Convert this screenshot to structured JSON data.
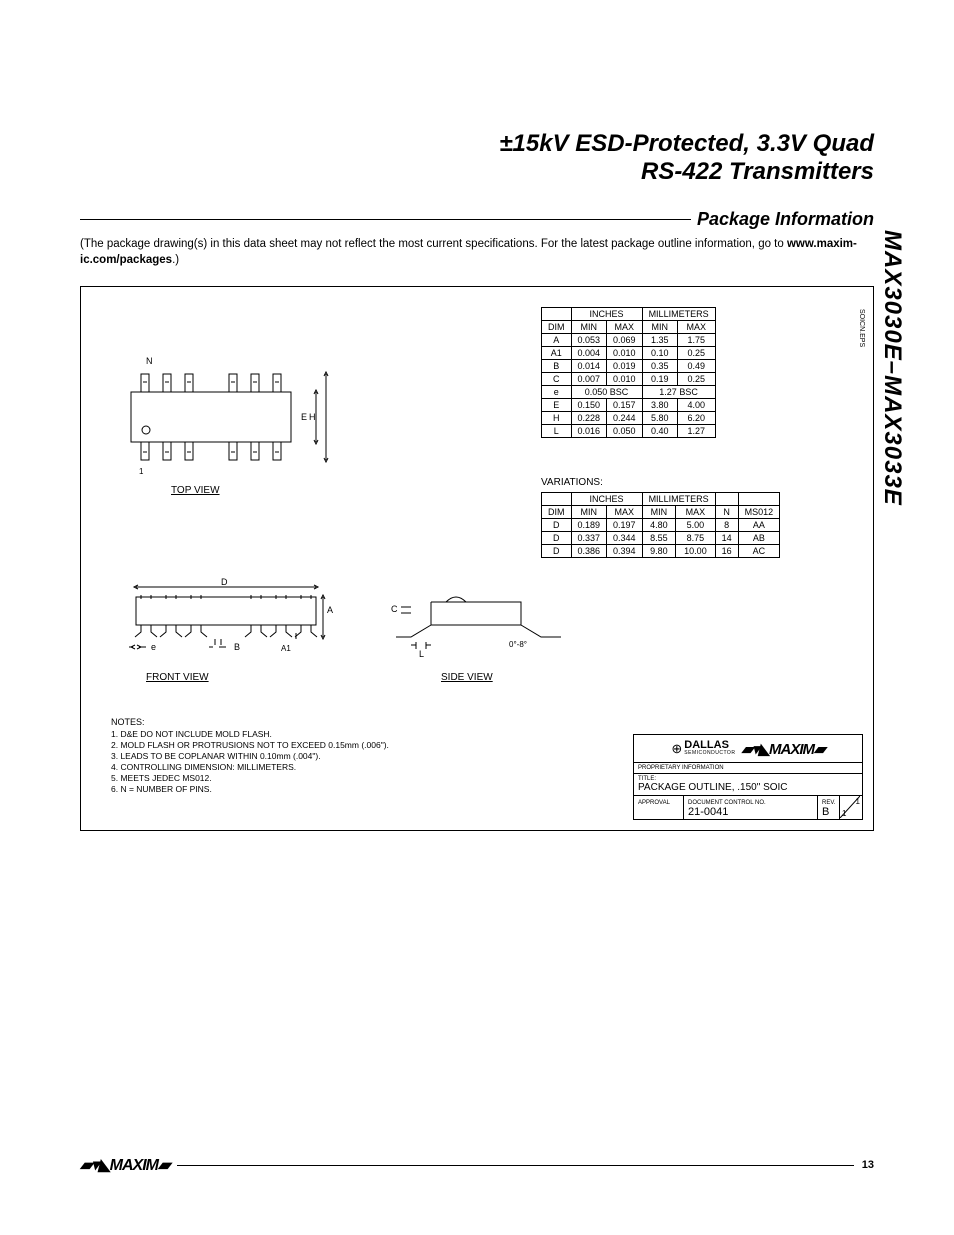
{
  "title_l1": "±15kV ESD-Protected, 3.3V Quad",
  "title_l2": "RS-422 Transmitters",
  "section": "Package Information",
  "disclaimer_a": "(The package drawing(s) in this data sheet may not reflect the most current specifications. For the latest package outline information, go to ",
  "disclaimer_b": "www.maxim-ic.com/packages",
  "disclaimer_c": ".)",
  "side_label": "MAX3030E–MAX3033E",
  "eps_label": "SOICN.EPS",
  "table1": {
    "head_in": "INCHES",
    "head_mm": "MILLIMETERS",
    "cols": [
      "DIM",
      "MIN",
      "MAX",
      "MIN",
      "MAX"
    ],
    "rows": [
      [
        "A",
        "0.053",
        "0.069",
        "1.35",
        "1.75"
      ],
      [
        "A1",
        "0.004",
        "0.010",
        "0.10",
        "0.25"
      ],
      [
        "B",
        "0.014",
        "0.019",
        "0.35",
        "0.49"
      ],
      [
        "C",
        "0.007",
        "0.010",
        "0.19",
        "0.25"
      ],
      [
        "e",
        "0.050 BSC",
        "",
        "1.27 BSC",
        ""
      ],
      [
        "E",
        "0.150",
        "0.157",
        "3.80",
        "4.00"
      ],
      [
        "H",
        "0.228",
        "0.244",
        "5.80",
        "6.20"
      ],
      [
        "L",
        "0.016",
        "0.050",
        "0.40",
        "1.27"
      ]
    ]
  },
  "variations_label": "VARIATIONS:",
  "table2": {
    "head_in": "INCHES",
    "head_mm": "MILLIMETERS",
    "cols": [
      "DIM",
      "MIN",
      "MAX",
      "MIN",
      "MAX",
      "N",
      "MS012"
    ],
    "rows": [
      [
        "D",
        "0.189",
        "0.197",
        "4.80",
        "5.00",
        "8",
        "AA"
      ],
      [
        "D",
        "0.337",
        "0.344",
        "8.55",
        "8.75",
        "14",
        "AB"
      ],
      [
        "D",
        "0.386",
        "0.394",
        "9.80",
        "10.00",
        "16",
        "AC"
      ]
    ]
  },
  "views": {
    "top": "TOP VIEW",
    "front": "FRONT VIEW",
    "side": "SIDE VIEW"
  },
  "pkg_labels": {
    "N": "N",
    "E": "E",
    "H": "H",
    "D": "D",
    "A": "A",
    "A1": "A1",
    "e": "e",
    "B": "B",
    "C": "C",
    "L": "L",
    "angle": "0°-8°",
    "one": "1"
  },
  "notes": {
    "head": "NOTES:",
    "n1": "1. D&E DO NOT INCLUDE MOLD FLASH.",
    "n2": "2. MOLD FLASH OR PROTRUSIONS NOT TO EXCEED 0.15mm (.006\").",
    "n3": "3. LEADS TO BE COPLANAR WITHIN 0.10mm (.004\").",
    "n4": "4. CONTROLLING DIMENSION: MILLIMETERS.",
    "n5": "5. MEETS JEDEC MS012.",
    "n6": "6. N = NUMBER OF PINS."
  },
  "titleblock": {
    "dallas": "DALLAS",
    "semi": "SEMICONDUCTOR",
    "maxim": "MAXIM",
    "prop": "PROPRIETARY INFORMATION",
    "title_lbl": "TITLE:",
    "title": "PACKAGE OUTLINE, .150\" SOIC",
    "approval": "APPROVAL",
    "docno_lbl": "DOCUMENT CONTROL NO.",
    "docno": "21-0041",
    "rev_lbl": "REV.",
    "rev": "B",
    "sheet": "1",
    "sheet_of": "1"
  },
  "footer": {
    "logo": "MAXIM",
    "page": "13"
  },
  "colors": {
    "line": "#000000",
    "bg": "#ffffff"
  }
}
